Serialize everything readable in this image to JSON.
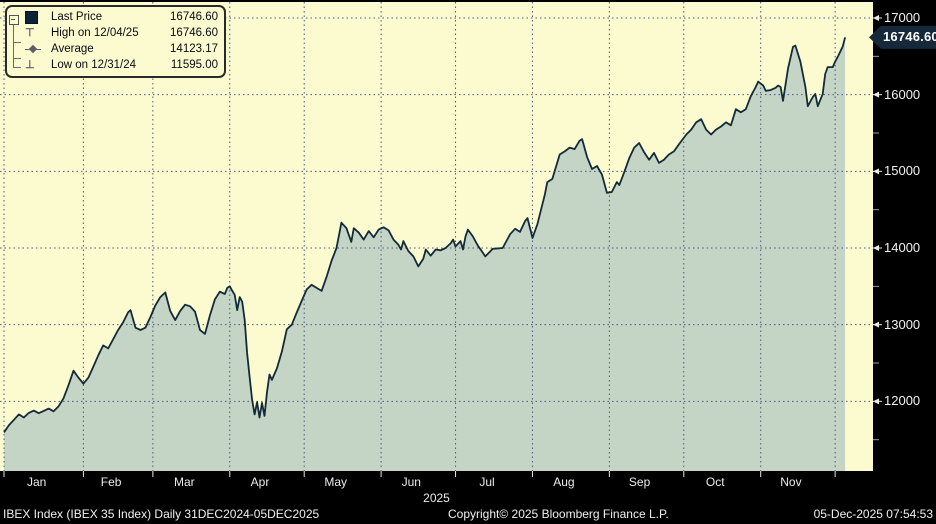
{
  "colors": {
    "background": "#000000",
    "plot_background": "#FBFBCF",
    "area_fill": "#C4D5C5",
    "price_line": "#122A3A",
    "gridline": "#4A5880",
    "axis_text": "#F2F2F2",
    "flag_background": "#15293B",
    "legend_swatch": "#0E2237"
  },
  "legend": {
    "rows": [
      {
        "marker": "last-price-square",
        "label": "Last Price",
        "value": "16746.60"
      },
      {
        "marker": "high-marker",
        "label": "High on 12/04/25",
        "value": "16746.60"
      },
      {
        "marker": "average-marker",
        "label": "Average",
        "value": "14123.17"
      },
      {
        "marker": "low-marker",
        "label": "Low on 12/31/24",
        "value": "11595.00"
      }
    ]
  },
  "y_axis": {
    "major_ticks": [
      17000,
      16000,
      15000,
      14000,
      13000,
      12000
    ],
    "minor_ticks": [
      16500,
      15500,
      14500,
      13500,
      12500,
      11500
    ],
    "last_price_label": "16746.60"
  },
  "x_axis": {
    "months": [
      {
        "label": "Jan",
        "start_day": 0,
        "mid_day": 16
      },
      {
        "label": "Feb",
        "start_day": 32,
        "mid_day": 46
      },
      {
        "label": "Mar",
        "start_day": 60,
        "mid_day": 75.5
      },
      {
        "label": "Apr",
        "start_day": 91,
        "mid_day": 106
      },
      {
        "label": "May",
        "start_day": 121,
        "mid_day": 136.5
      },
      {
        "label": "Jun",
        "start_day": 152,
        "mid_day": 167
      },
      {
        "label": "Jul",
        "start_day": 182,
        "mid_day": 197.5
      },
      {
        "label": "Aug",
        "start_day": 213,
        "mid_day": 228.5
      },
      {
        "label": "Sep",
        "start_day": 244,
        "mid_day": 259
      },
      {
        "label": "Oct",
        "start_day": 274,
        "mid_day": 289.5
      },
      {
        "label": "Nov",
        "start_day": 305,
        "mid_day": 320
      },
      {
        "label": "",
        "start_day": 335,
        "mid_day": 337
      }
    ],
    "year": "2025"
  },
  "footer": {
    "left": "IBEX Index (IBEX 35 Index) Daily 31DEC2024-05DEC2025",
    "center": "Copyright© 2025 Bloomberg Finance L.P.",
    "right": "05-Dec-2025 07:54:53"
  },
  "chart_data": {
    "type": "area",
    "title": "IBEX 35 Index Daily 31DEC2024-05DEC2025",
    "x_unit": "days since 31-Dec-2024",
    "x_range": [
      0,
      339
    ],
    "ylim": [
      11100,
      17150
    ],
    "grid": true,
    "last_price": 16746.6,
    "high": {
      "date": "12/04/25",
      "value": 16746.6
    },
    "average": 14123.17,
    "low": {
      "date": "12/31/24",
      "value": 11595.0
    },
    "points": [
      [
        0,
        11595
      ],
      [
        2,
        11690
      ],
      [
        4,
        11760
      ],
      [
        6,
        11830
      ],
      [
        8,
        11790
      ],
      [
        10,
        11850
      ],
      [
        12,
        11880
      ],
      [
        14,
        11845
      ],
      [
        16,
        11875
      ],
      [
        18,
        11905
      ],
      [
        20,
        11870
      ],
      [
        22,
        11935
      ],
      [
        24,
        12040
      ],
      [
        26,
        12210
      ],
      [
        28,
        12400
      ],
      [
        30,
        12310
      ],
      [
        32,
        12230
      ],
      [
        34,
        12310
      ],
      [
        36,
        12450
      ],
      [
        38,
        12600
      ],
      [
        40,
        12730
      ],
      [
        42,
        12690
      ],
      [
        44,
        12810
      ],
      [
        46,
        12930
      ],
      [
        48,
        13030
      ],
      [
        50,
        13160
      ],
      [
        51,
        13190
      ],
      [
        53,
        12960
      ],
      [
        55,
        12930
      ],
      [
        57,
        12960
      ],
      [
        59,
        13100
      ],
      [
        61,
        13250
      ],
      [
        63,
        13360
      ],
      [
        65,
        13420
      ],
      [
        67,
        13180
      ],
      [
        69,
        13060
      ],
      [
        71,
        13180
      ],
      [
        73,
        13260
      ],
      [
        75,
        13240
      ],
      [
        77,
        13170
      ],
      [
        79,
        12930
      ],
      [
        81,
        12880
      ],
      [
        83,
        13120
      ],
      [
        85,
        13330
      ],
      [
        87,
        13430
      ],
      [
        89,
        13400
      ],
      [
        90,
        13480
      ],
      [
        91,
        13500
      ],
      [
        92,
        13440
      ],
      [
        93,
        13390
      ],
      [
        94,
        13190
      ],
      [
        95,
        13360
      ],
      [
        96,
        13300
      ],
      [
        97,
        13060
      ],
      [
        98,
        12630
      ],
      [
        99,
        12320
      ],
      [
        100,
        12020
      ],
      [
        101,
        11830
      ],
      [
        102,
        11990
      ],
      [
        103,
        11790
      ],
      [
        104,
        11980
      ],
      [
        105,
        11810
      ],
      [
        106,
        12120
      ],
      [
        107,
        12350
      ],
      [
        108,
        12280
      ],
      [
        110,
        12430
      ],
      [
        112,
        12650
      ],
      [
        114,
        12940
      ],
      [
        116,
        13000
      ],
      [
        118,
        13160
      ],
      [
        120,
        13310
      ],
      [
        122,
        13460
      ],
      [
        124,
        13520
      ],
      [
        126,
        13480
      ],
      [
        128,
        13440
      ],
      [
        130,
        13620
      ],
      [
        132,
        13830
      ],
      [
        134,
        14000
      ],
      [
        135,
        14160
      ],
      [
        136,
        14330
      ],
      [
        138,
        14260
      ],
      [
        140,
        14080
      ],
      [
        141,
        14260
      ],
      [
        143,
        14200
      ],
      [
        145,
        14110
      ],
      [
        147,
        14220
      ],
      [
        149,
        14140
      ],
      [
        151,
        14240
      ],
      [
        153,
        14270
      ],
      [
        155,
        14230
      ],
      [
        157,
        14110
      ],
      [
        159,
        14040
      ],
      [
        160,
        13980
      ],
      [
        161,
        14090
      ],
      [
        163,
        13960
      ],
      [
        165,
        13890
      ],
      [
        167,
        13760
      ],
      [
        169,
        13860
      ],
      [
        170,
        13980
      ],
      [
        172,
        13900
      ],
      [
        174,
        13980
      ],
      [
        176,
        13970
      ],
      [
        178,
        14000
      ],
      [
        180,
        14060
      ],
      [
        181,
        14110
      ],
      [
        182,
        14020
      ],
      [
        184,
        14090
      ],
      [
        185,
        13980
      ],
      [
        186,
        14150
      ],
      [
        187,
        14240
      ],
      [
        189,
        14150
      ],
      [
        191,
        14030
      ],
      [
        193,
        13940
      ],
      [
        194,
        13890
      ],
      [
        197,
        13990
      ],
      [
        201,
        14000
      ],
      [
        204,
        14180
      ],
      [
        206,
        14250
      ],
      [
        208,
        14210
      ],
      [
        210,
        14350
      ],
      [
        211,
        14390
      ],
      [
        213,
        14130
      ],
      [
        215,
        14310
      ],
      [
        218,
        14700
      ],
      [
        219,
        14860
      ],
      [
        221,
        14900
      ],
      [
        224,
        15220
      ],
      [
        226,
        15260
      ],
      [
        228,
        15310
      ],
      [
        230,
        15290
      ],
      [
        232,
        15400
      ],
      [
        233,
        15420
      ],
      [
        235,
        15190
      ],
      [
        237,
        15030
      ],
      [
        239,
        15070
      ],
      [
        241,
        14960
      ],
      [
        243,
        14720
      ],
      [
        245,
        14730
      ],
      [
        247,
        14860
      ],
      [
        248,
        14820
      ],
      [
        250,
        14990
      ],
      [
        252,
        15170
      ],
      [
        254,
        15310
      ],
      [
        256,
        15370
      ],
      [
        258,
        15250
      ],
      [
        260,
        15150
      ],
      [
        262,
        15240
      ],
      [
        264,
        15110
      ],
      [
        266,
        15150
      ],
      [
        268,
        15220
      ],
      [
        270,
        15260
      ],
      [
        272,
        15350
      ],
      [
        275,
        15480
      ],
      [
        277,
        15545
      ],
      [
        279,
        15640
      ],
      [
        281,
        15680
      ],
      [
        283,
        15545
      ],
      [
        285,
        15480
      ],
      [
        287,
        15545
      ],
      [
        289,
        15585
      ],
      [
        291,
        15640
      ],
      [
        293,
        15600
      ],
      [
        295,
        15810
      ],
      [
        297,
        15770
      ],
      [
        299,
        15810
      ],
      [
        301,
        15980
      ],
      [
        303,
        16100
      ],
      [
        304,
        16170
      ],
      [
        306,
        16120
      ],
      [
        307,
        16050
      ],
      [
        309,
        16060
      ],
      [
        311,
        16090
      ],
      [
        312,
        16120
      ],
      [
        313,
        16100
      ],
      [
        314,
        15920
      ],
      [
        316,
        16340
      ],
      [
        318,
        16625
      ],
      [
        319,
        16640
      ],
      [
        321,
        16430
      ],
      [
        323,
        16100
      ],
      [
        324,
        15850
      ],
      [
        326,
        15970
      ],
      [
        327,
        16010
      ],
      [
        328,
        15850
      ],
      [
        330,
        16010
      ],
      [
        331,
        16270
      ],
      [
        332,
        16360
      ],
      [
        334,
        16360
      ],
      [
        335,
        16430
      ],
      [
        336,
        16490
      ],
      [
        338,
        16625
      ],
      [
        339,
        16746.6
      ]
    ]
  }
}
